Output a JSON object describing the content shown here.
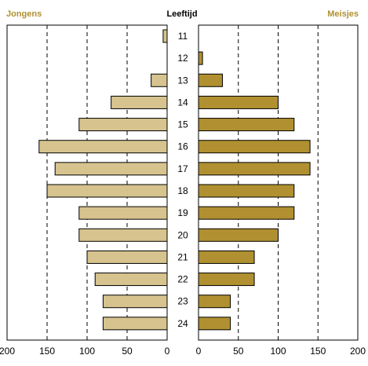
{
  "chart_data": {
    "type": "bar",
    "orientation": "horizontal",
    "layout": "population-pyramid",
    "title": "Leeftijd",
    "categories": [
      "11",
      "12",
      "13",
      "14",
      "15",
      "16",
      "17",
      "18",
      "19",
      "20",
      "21",
      "22",
      "23",
      "24"
    ],
    "series": [
      {
        "name": "Jongens",
        "color": "#d6c38e",
        "side": "left",
        "values": [
          5,
          0,
          20,
          70,
          110,
          160,
          140,
          150,
          110,
          110,
          100,
          90,
          80,
          80
        ]
      },
      {
        "name": "Meisjes",
        "color": "#b09030",
        "side": "right",
        "values": [
          0,
          5,
          30,
          100,
          120,
          140,
          140,
          120,
          120,
          100,
          70,
          70,
          40,
          40
        ]
      }
    ],
    "xlim": [
      0,
      200
    ],
    "xticks": [
      200,
      150,
      100,
      50,
      0
    ],
    "xticks_right": [
      0,
      50,
      100,
      150,
      200
    ],
    "grid": "vertical-dashed",
    "legend": "top-corners",
    "label_color": "#b09030"
  }
}
